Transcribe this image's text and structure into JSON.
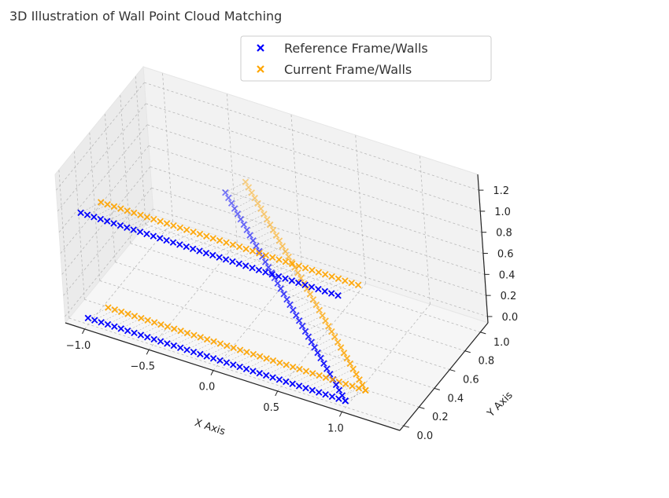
{
  "chart_data": {
    "type": "scatter",
    "projection": "3d",
    "title": "3D Illustration of Wall Point Cloud Matching",
    "xlabel": "X Axis",
    "ylabel": "Y Axis",
    "zlabel": "",
    "xlim": [
      -1.15,
      1.45
    ],
    "ylim": [
      -0.05,
      1.1
    ],
    "zlim": [
      -0.06,
      1.35
    ],
    "xticks": [
      "−1.0",
      "−0.5",
      "0.0",
      "0.5",
      "1.0"
    ],
    "xtick_values": [
      -1.0,
      -0.5,
      0.0,
      0.5,
      1.0
    ],
    "yticks": [
      "0.0",
      "0.2",
      "0.4",
      "0.6",
      "0.8",
      "1.0"
    ],
    "ytick_values": [
      0.0,
      0.2,
      0.4,
      0.6,
      0.8,
      1.0
    ],
    "zticks": [
      "0.0",
      "0.2",
      "0.4",
      "0.6",
      "0.8",
      "1.0",
      "1.2"
    ],
    "ztick_values": [
      0.0,
      0.2,
      0.4,
      0.6,
      0.8,
      1.0,
      1.2
    ],
    "grid": true,
    "legend_position": "top-center",
    "marker": "x",
    "points_per_wall": 40,
    "series": [
      {
        "name": "Reference Frame/Walls",
        "color": "#0000ff",
        "walls": [
          {
            "start": [
              -1.0,
              0.0,
              0.0
            ],
            "end": [
              1.0,
              0.0,
              0.0
            ]
          },
          {
            "start": [
              -1.0,
              0.0,
              1.0
            ],
            "end": [
              1.0,
              0.0,
              1.0
            ]
          },
          {
            "start": [
              -0.5,
              1.0,
              0.5
            ],
            "end": [
              1.0,
              0.0,
              0.0
            ]
          }
        ]
      },
      {
        "name": "Current Frame/Walls",
        "color": "#ffa500",
        "walls": [
          {
            "start": [
              -0.9,
              0.1,
              0.05
            ],
            "end": [
              1.1,
              0.1,
              0.05
            ]
          },
          {
            "start": [
              -0.9,
              0.1,
              1.05
            ],
            "end": [
              1.1,
              0.1,
              1.05
            ]
          },
          {
            "start": [
              -0.4,
              1.1,
              0.55
            ],
            "end": [
              1.1,
              0.1,
              0.05
            ]
          }
        ]
      }
    ],
    "correspondence_lines": {
      "style": "dashed",
      "color": "#555555"
    }
  }
}
